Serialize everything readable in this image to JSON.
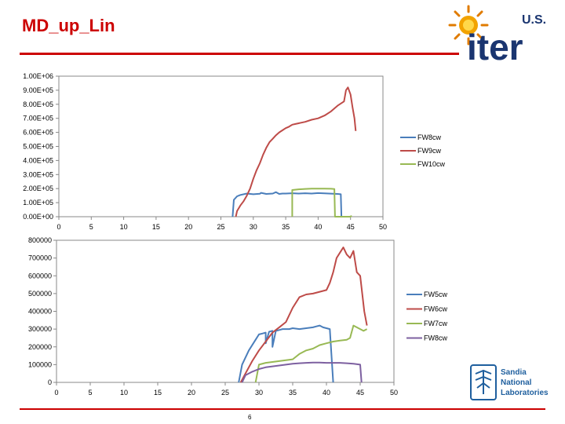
{
  "title": "MD_up_Lin",
  "logos": {
    "iter_prefix": "U.S.",
    "iter_word": "iter",
    "sandia": [
      "Sandia",
      "National",
      "Laboratories"
    ]
  },
  "page_number": "6",
  "colors": {
    "title": "#cc0000",
    "blue": "#4a7ebb",
    "red": "#be4b48",
    "green": "#98b954",
    "purple": "#7d60a0"
  },
  "chart_data": [
    {
      "type": "line",
      "xlim": [
        0,
        50
      ],
      "ylim": [
        0,
        1000000
      ],
      "x_ticks": [
        "0",
        "5",
        "10",
        "15",
        "20",
        "25",
        "30",
        "35",
        "40",
        "45",
        "50"
      ],
      "y_ticks": [
        "0.00E+00",
        "1.00E+05",
        "2.00E+05",
        "3.00E+05",
        "4.00E+05",
        "5.00E+05",
        "6.00E+05",
        "7.00E+05",
        "8.00E+05",
        "9.00E+05",
        "1.00E+06"
      ],
      "legend_position": "right",
      "series": [
        {
          "name": "FW8cw",
          "color": "#4a7ebb",
          "points": [
            [
              26.8,
              0
            ],
            [
              27,
              120000
            ],
            [
              27.5,
              145000
            ],
            [
              28,
              155000
            ],
            [
              29,
              165000
            ],
            [
              30,
              160000
            ],
            [
              31,
              163000
            ],
            [
              31.2,
              170000
            ],
            [
              32,
              162000
            ],
            [
              33,
              165000
            ],
            [
              33.5,
              175000
            ],
            [
              34,
              162000
            ],
            [
              34.5,
              165000
            ],
            [
              35,
              165000
            ],
            [
              36,
              167000
            ],
            [
              37,
              165000
            ],
            [
              38,
              167000
            ],
            [
              39,
              165000
            ],
            [
              40,
              168000
            ],
            [
              41,
              166000
            ],
            [
              42,
              164000
            ],
            [
              43,
              162000
            ],
            [
              43.5,
              160000
            ],
            [
              43.6,
              0
            ]
          ]
        },
        {
          "name": "FW9cw",
          "color": "#be4b48",
          "points": [
            [
              27.3,
              0
            ],
            [
              27.5,
              40000
            ],
            [
              28,
              80000
            ],
            [
              28.5,
              110000
            ],
            [
              29,
              150000
            ],
            [
              29.5,
              200000
            ],
            [
              30,
              270000
            ],
            [
              30.5,
              330000
            ],
            [
              31,
              380000
            ],
            [
              31.5,
              440000
            ],
            [
              32,
              490000
            ],
            [
              32.5,
              530000
            ],
            [
              33,
              555000
            ],
            [
              33.5,
              580000
            ],
            [
              34,
              600000
            ],
            [
              34.5,
              615000
            ],
            [
              35,
              630000
            ],
            [
              35.5,
              640000
            ],
            [
              36,
              655000
            ],
            [
              36.5,
              660000
            ],
            [
              37,
              665000
            ],
            [
              38,
              675000
            ],
            [
              39,
              690000
            ],
            [
              40,
              700000
            ],
            [
              41,
              720000
            ],
            [
              42,
              750000
            ],
            [
              43,
              790000
            ],
            [
              44,
              820000
            ],
            [
              44.3,
              900000
            ],
            [
              44.6,
              920000
            ],
            [
              45,
              870000
            ],
            [
              45.3,
              780000
            ],
            [
              45.6,
              700000
            ],
            [
              45.8,
              610000
            ]
          ]
        },
        {
          "name": "FW10cw",
          "color": "#98b954",
          "points": [
            [
              36,
              0
            ],
            [
              36,
              190000
            ],
            [
              37,
              195000
            ],
            [
              38,
              198000
            ],
            [
              39,
              200000
            ],
            [
              40,
              200000
            ],
            [
              41,
              200000
            ],
            [
              42,
              199000
            ],
            [
              42.5,
              197000
            ],
            [
              42.6,
              0
            ],
            [
              44.9,
              0
            ],
            [
              45.2,
              5000
            ]
          ]
        }
      ]
    },
    {
      "type": "line",
      "xlim": [
        0,
        50
      ],
      "ylim": [
        0,
        800000
      ],
      "x_ticks": [
        "0",
        "5",
        "10",
        "15",
        "20",
        "25",
        "30",
        "35",
        "40",
        "45",
        "50"
      ],
      "y_ticks": [
        "0",
        "100000",
        "200000",
        "300000",
        "400000",
        "500000",
        "600000",
        "700000",
        "800000"
      ],
      "legend_position": "right",
      "series": [
        {
          "name": "FW5cw",
          "color": "#4a7ebb",
          "points": [
            [
              27,
              0
            ],
            [
              27.5,
              100000
            ],
            [
              28.5,
              180000
            ],
            [
              29.5,
              240000
            ],
            [
              30,
              270000
            ],
            [
              30.5,
              275000
            ],
            [
              31,
              280000
            ],
            [
              31,
              220000
            ],
            [
              31.5,
              285000
            ],
            [
              32,
              290000
            ],
            [
              32,
              200000
            ],
            [
              32.5,
              290000
            ],
            [
              33,
              295000
            ],
            [
              33.5,
              300000
            ],
            [
              34.5,
              300000
            ],
            [
              35,
              305000
            ],
            [
              36,
              300000
            ],
            [
              37,
              305000
            ],
            [
              38,
              310000
            ],
            [
              38.5,
              315000
            ],
            [
              39,
              320000
            ],
            [
              39.5,
              310000
            ],
            [
              40,
              305000
            ],
            [
              40.5,
              300000
            ],
            [
              41,
              0
            ]
          ]
        },
        {
          "name": "FW6cw",
          "color": "#be4b48",
          "points": [
            [
              27.3,
              0
            ],
            [
              28,
              50000
            ],
            [
              29,
              120000
            ],
            [
              30,
              180000
            ],
            [
              31,
              230000
            ],
            [
              32,
              280000
            ],
            [
              33,
              310000
            ],
            [
              34,
              340000
            ],
            [
              35,
              420000
            ],
            [
              36,
              480000
            ],
            [
              37,
              495000
            ],
            [
              38,
              500000
            ],
            [
              39,
              510000
            ],
            [
              40,
              520000
            ],
            [
              40.5,
              560000
            ],
            [
              41,
              620000
            ],
            [
              41.5,
              700000
            ],
            [
              42,
              730000
            ],
            [
              42.5,
              760000
            ],
            [
              43,
              720000
            ],
            [
              43.5,
              700000
            ],
            [
              44,
              740000
            ],
            [
              44.5,
              620000
            ],
            [
              45,
              600000
            ],
            [
              45.3,
              500000
            ],
            [
              45.6,
              400000
            ],
            [
              46,
              320000
            ]
          ]
        },
        {
          "name": "FW7cw",
          "color": "#98b954",
          "points": [
            [
              29.5,
              0
            ],
            [
              30,
              100000
            ],
            [
              31,
              110000
            ],
            [
              32,
              115000
            ],
            [
              33,
              120000
            ],
            [
              34,
              125000
            ],
            [
              35,
              130000
            ],
            [
              36,
              160000
            ],
            [
              37,
              180000
            ],
            [
              38,
              190000
            ],
            [
              39,
              210000
            ],
            [
              40,
              220000
            ],
            [
              41,
              230000
            ],
            [
              42,
              235000
            ],
            [
              43,
              240000
            ],
            [
              43.5,
              250000
            ],
            [
              44,
              320000
            ],
            [
              44.5,
              310000
            ],
            [
              45,
              300000
            ],
            [
              45.5,
              290000
            ],
            [
              46,
              300000
            ]
          ]
        },
        {
          "name": "FW8cw",
          "color": "#7d60a0",
          "points": [
            [
              27.5,
              0
            ],
            [
              28,
              40000
            ],
            [
              29,
              60000
            ],
            [
              30,
              75000
            ],
            [
              31,
              85000
            ],
            [
              32,
              90000
            ],
            [
              33,
              95000
            ],
            [
              34,
              100000
            ],
            [
              35,
              105000
            ],
            [
              36,
              108000
            ],
            [
              37,
              110000
            ],
            [
              38,
              112000
            ],
            [
              39,
              112000
            ],
            [
              40,
              110000
            ],
            [
              41,
              110000
            ],
            [
              42,
              110000
            ],
            [
              43,
              108000
            ],
            [
              44,
              105000
            ],
            [
              45,
              100000
            ],
            [
              45.2,
              0
            ]
          ]
        }
      ]
    }
  ]
}
